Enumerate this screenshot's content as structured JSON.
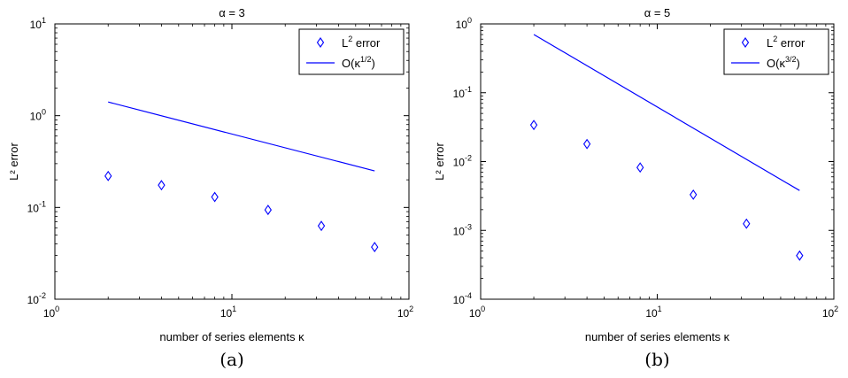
{
  "colors": {
    "series": "#0000ff",
    "axis": "#000000",
    "background": "#ffffff"
  },
  "chart_data": [
    {
      "type": "scatter",
      "title": "α = 3",
      "caption": "(a)",
      "xlabel": "number of series elements κ",
      "ylabel": "L² error",
      "xscale": "log",
      "yscale": "log",
      "xlim": [
        1,
        100
      ],
      "ylim": [
        0.01,
        10
      ],
      "xticks": [
        {
          "base": "10",
          "exp": "0"
        },
        {
          "base": "10",
          "exp": "1"
        },
        {
          "base": "10",
          "exp": "2"
        }
      ],
      "yticks": [
        {
          "base": "10",
          "exp": "-2"
        },
        {
          "base": "10",
          "exp": "-1"
        },
        {
          "base": "10",
          "exp": "0"
        },
        {
          "base": "10",
          "exp": "1"
        }
      ],
      "legend_position": "top-right",
      "series": [
        {
          "name": "L² error",
          "legend_base": "L",
          "legend_sup": "2",
          "legend_rest": " error",
          "marker": "diamond",
          "x": [
            2,
            4,
            8,
            16,
            32,
            64
          ],
          "y": [
            0.22,
            0.175,
            0.13,
            0.094,
            0.063,
            0.037
          ]
        },
        {
          "name": "O(κ^(1/2))",
          "legend_base": "O(κ",
          "legend_sup": "1/2",
          "legend_rest": ")",
          "marker": "line",
          "x": [
            2,
            64
          ],
          "y": [
            1.41,
            0.25
          ]
        }
      ]
    },
    {
      "type": "scatter",
      "title": "α = 5",
      "caption": "(b)",
      "xlabel": "number of series elements κ",
      "ylabel": "L² error",
      "xscale": "log",
      "yscale": "log",
      "xlim": [
        1,
        100
      ],
      "ylim": [
        0.0001,
        1
      ],
      "xticks": [
        {
          "base": "10",
          "exp": "0"
        },
        {
          "base": "10",
          "exp": "1"
        },
        {
          "base": "10",
          "exp": "2"
        }
      ],
      "yticks": [
        {
          "base": "10",
          "exp": "-4"
        },
        {
          "base": "10",
          "exp": "-3"
        },
        {
          "base": "10",
          "exp": "-2"
        },
        {
          "base": "10",
          "exp": "-1"
        },
        {
          "base": "10",
          "exp": "0"
        }
      ],
      "legend_position": "top-right",
      "series": [
        {
          "name": "L² error",
          "legend_base": "L",
          "legend_sup": "2",
          "legend_rest": " error",
          "marker": "diamond",
          "x": [
            2,
            4,
            8,
            16,
            32,
            64
          ],
          "y": [
            0.034,
            0.018,
            0.0082,
            0.0033,
            0.00125,
            0.00043
          ]
        },
        {
          "name": "O(κ^(3/2))",
          "legend_base": "O(κ",
          "legend_sup": "3/2",
          "legend_rest": ")",
          "marker": "line",
          "x": [
            2,
            64
          ],
          "y": [
            0.7,
            0.0038
          ]
        }
      ]
    }
  ]
}
